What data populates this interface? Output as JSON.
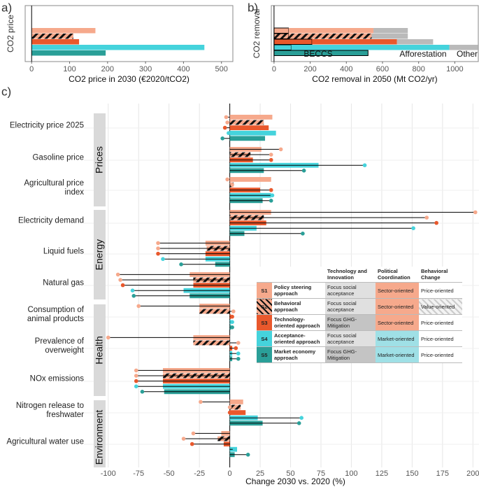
{
  "legend_table": {
    "header": [
      "Technology and Innovation",
      "Political Coordination",
      "Behavioral Change"
    ],
    "rows": [
      {
        "id": "S1",
        "name": "Policy steering approach",
        "tech": "Focus social acceptance",
        "political": "Sector-oriented",
        "behavioral": "Price-oriented",
        "color": "#f6a98c",
        "hatch": false
      },
      {
        "id": "S2",
        "name": "Behavioral approach",
        "tech": "Focus social acceptance",
        "political": "Sector-oriented",
        "behavioral": "Value-oriented",
        "color": "#f6a98c",
        "hatch": true
      },
      {
        "id": "S3",
        "name": "Technology-oriented approach",
        "tech": "Focus GHG-Mitigation",
        "political": "Sector-oriented",
        "behavioral": "Price-oriented",
        "color": "#e9582c",
        "hatch": false
      },
      {
        "id": "S4",
        "name": "Acceptance-oriented approach",
        "tech": "Focus social acceptance",
        "political": "Market-oriented",
        "behavioral": "Price-oriented",
        "color": "#45d3dc",
        "hatch": false
      },
      {
        "id": "S5",
        "name": "Market economy approach",
        "tech": "Focus GHG-Mitigation",
        "political": "Market-oriented",
        "behavioral": "Price-oriented",
        "color": "#2a9f98",
        "hatch": false
      }
    ]
  },
  "chart_data": [
    {
      "type": "bar",
      "panel_label": "a)",
      "y_label": "CO2 price",
      "x_label": "CO2 price in 2030 (€2020/tCO2)",
      "values": [
        168,
        110,
        125,
        455,
        195
      ],
      "xlim": [
        -17,
        530
      ],
      "xticks": [
        0,
        100,
        200,
        300,
        400,
        500
      ]
    },
    {
      "type": "stacked_bar",
      "panel_label": "b)",
      "y_label": "CO2 removal",
      "x_label": "CO2 removal in 2050 (Mt CO2/yr)",
      "series": [
        {
          "name": "BECCS",
          "values": [
            80,
            80,
            210,
            95,
            520
          ]
        },
        {
          "name": "Afforestation",
          "values": [
            470,
            460,
            470,
            875,
            0
          ]
        },
        {
          "name": "Other",
          "values": [
            190,
            200,
            200,
            160,
            0
          ],
          "color": "#a9a9a9"
        }
      ],
      "xlim": [
        -15,
        1130
      ],
      "xticks": [
        0,
        200,
        400,
        600,
        800,
        1000
      ]
    },
    {
      "type": "bar_lollipop",
      "panel_label": "c)",
      "x_label": "Change 2030 vs. 2020 (%)",
      "groups": [
        {
          "name": "Prices",
          "categories": [
            "Electricity price 2025",
            "Gasoline price",
            "Agricultural price\nindex"
          ]
        },
        {
          "name": "Energy",
          "categories": [
            "Electricity demand",
            "Liquid fuels",
            "Natural gas"
          ]
        },
        {
          "name": "Health",
          "categories": [
            "Consumption of\nanimal products",
            "Prevalence of\noverweight",
            "NOx emissions"
          ]
        },
        {
          "name": "Environment",
          "categories": [
            "Nitrogen release to\nfreshwater",
            "Agricultural water use"
          ]
        }
      ],
      "series": [
        {
          "values": [
            35,
            26,
            34,
            34,
            -20,
            -33,
            -25,
            -30,
            -55,
            11,
            -7
          ],
          "points": [
            -3,
            42,
            -2,
            202,
            -59,
            -92,
            -75,
            -100,
            -77,
            -24,
            -30
          ]
        },
        {
          "values": [
            28,
            17,
            3,
            28,
            -19,
            -30,
            -25,
            -30,
            -55,
            9,
            -10
          ],
          "points": [
            -2,
            34,
            2,
            162,
            -59,
            -90,
            3,
            7,
            -77,
            0,
            -38
          ]
        },
        {
          "values": [
            32,
            19,
            25,
            30,
            -20,
            -30,
            1,
            2,
            -55,
            13,
            -5
          ],
          "points": [
            -4,
            34,
            34,
            170,
            -59,
            -88,
            2,
            5,
            -77,
            0,
            -31
          ]
        },
        {
          "values": [
            38,
            73,
            34,
            22,
            -20,
            -38,
            1,
            2,
            -55,
            23,
            6
          ],
          "points": [
            -1,
            111,
            35,
            151,
            -55,
            -80,
            2,
            7,
            -77,
            59,
            4
          ]
        },
        {
          "values": [
            29,
            28,
            27,
            12,
            -12,
            -33,
            1,
            2,
            -54,
            27,
            4
          ],
          "points": [
            -6,
            61,
            34,
            60,
            -40,
            -79,
            2,
            7,
            -72,
            57,
            15
          ]
        }
      ],
      "xlim": [
        -120,
        205
      ],
      "xticks": [
        -100,
        -75,
        -50,
        -25,
        0,
        25,
        50,
        75,
        100,
        125,
        150,
        175,
        200
      ],
      "grid": true
    }
  ]
}
